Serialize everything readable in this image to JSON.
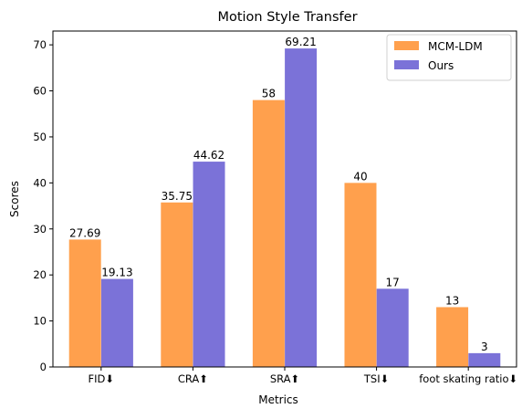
{
  "chart_data": {
    "type": "bar",
    "title": "Motion Style Transfer",
    "xlabel": "Metrics",
    "ylabel": "Scores",
    "categories": [
      "FID⬇",
      "CRA⬆",
      "SRA⬆",
      "TSI⬇",
      "foot skating ratio⬇"
    ],
    "series": [
      {
        "name": "MCM-LDM",
        "values": [
          27.69,
          35.75,
          58,
          40,
          13
        ],
        "labels": [
          "27.69",
          "35.75",
          "58",
          "40",
          "13"
        ],
        "color": "#ffa04d"
      },
      {
        "name": "Ours",
        "values": [
          19.13,
          44.62,
          69.21,
          17,
          3
        ],
        "labels": [
          "19.13",
          "44.62",
          "69.21",
          "17",
          "3"
        ],
        "color": "#7b72d8"
      }
    ],
    "ylim": [
      0,
      73
    ],
    "yticks": [
      0,
      10,
      20,
      30,
      40,
      50,
      60,
      70
    ],
    "grid": false,
    "legend_position": "top-right"
  }
}
